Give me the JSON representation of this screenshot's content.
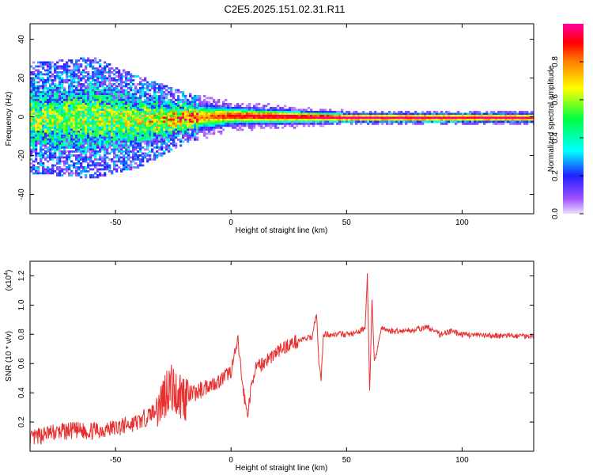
{
  "figure_title": "C2E5.2025.151.02.31.R11",
  "chart_data": [
    {
      "type": "heatmap",
      "title": "C2E5.2025.151.02.31.R11",
      "xlabel": "Height of straight line (km)",
      "ylabel": "Frequency (Hz)",
      "xlim": [
        -87,
        131
      ],
      "ylim": [
        -50,
        48
      ],
      "x_ticks": [
        -50,
        0,
        50,
        100
      ],
      "y_ticks": [
        -40,
        -20,
        0,
        20,
        40
      ],
      "colorbar": {
        "label": "Normalized spectral amplitude",
        "range": [
          0,
          1
        ],
        "ticks": [
          0.0,
          0.2,
          0.4,
          0.6,
          0.8
        ],
        "colormap": [
          "#e8e0ff",
          "#a050ff",
          "#2020ff",
          "#00ffff",
          "#00ff40",
          "#ffff00",
          "#ff8000",
          "#ff0000",
          "#ff00a0"
        ]
      },
      "ridge": [
        {
          "x": -87,
          "center": 0,
          "width": 22,
          "amp": 0.45
        },
        {
          "x": -60,
          "center": 0,
          "width": 24,
          "amp": 0.45
        },
        {
          "x": -40,
          "center": -2,
          "width": 18,
          "amp": 0.5
        },
        {
          "x": -20,
          "center": 0,
          "width": 10,
          "amp": 0.7
        },
        {
          "x": 0,
          "center": 1,
          "width": 6,
          "amp": 0.9
        },
        {
          "x": 50,
          "center": 0,
          "width": 3,
          "amp": 1.0
        },
        {
          "x": 131,
          "center": 0,
          "width": 3,
          "amp": 1.0
        }
      ]
    },
    {
      "type": "line",
      "xlabel": "Height of straight line (km)",
      "ylabel": "SNR (10 * v/v)",
      "y_exponent_label": "(x10",
      "y_exponent_power": "4",
      "y_exponent_close": ")",
      "xlim": [
        -87,
        131
      ],
      "ylim": [
        0.0,
        1.3
      ],
      "x_ticks": [
        -50,
        0,
        50,
        100
      ],
      "y_ticks": [
        0.2,
        0.4,
        0.6,
        0.8,
        1.0,
        1.2
      ],
      "series": [
        {
          "color": "#e83030",
          "x": [
            -87,
            -80,
            -70,
            -60,
            -50,
            -40,
            -35,
            -30,
            -27,
            -24,
            -20,
            -15,
            -10,
            -5,
            0,
            3,
            5,
            7,
            10,
            15,
            20,
            25,
            30,
            35,
            37,
            38,
            39,
            40,
            45,
            50,
            55,
            58,
            59,
            60,
            61,
            62,
            65,
            70,
            80,
            85,
            90,
            95,
            100,
            110,
            120,
            131
          ],
          "y": [
            0.08,
            0.12,
            0.14,
            0.14,
            0.16,
            0.2,
            0.25,
            0.35,
            0.45,
            0.4,
            0.38,
            0.4,
            0.45,
            0.48,
            0.55,
            0.75,
            0.45,
            0.25,
            0.55,
            0.62,
            0.68,
            0.73,
            0.76,
            0.78,
            0.95,
            0.6,
            0.5,
            0.8,
            0.8,
            0.8,
            0.81,
            0.85,
            1.2,
            0.4,
            1.05,
            0.6,
            0.84,
            0.82,
            0.83,
            0.85,
            0.8,
            0.82,
            0.8,
            0.79,
            0.79,
            0.79
          ]
        }
      ]
    }
  ]
}
